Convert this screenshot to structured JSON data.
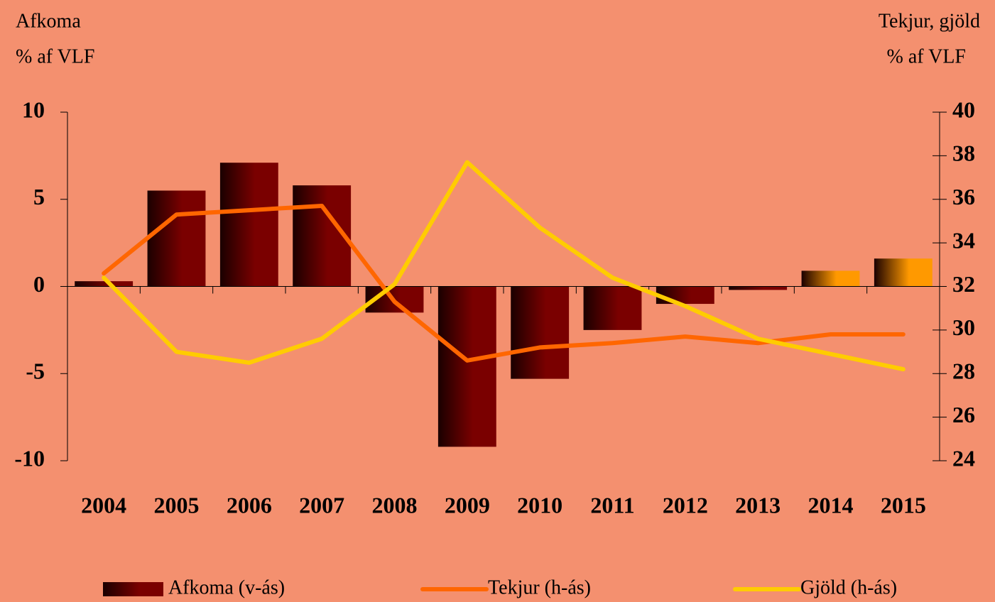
{
  "chart_data": {
    "type": "bar_line",
    "y_label": [
      "Afkoma",
      "% af VLF"
    ],
    "y2_label": [
      "Tekjur, gjöld",
      "% af VLF"
    ],
    "categories": [
      "2004",
      "2005",
      "2006",
      "2007",
      "2008",
      "2009",
      "2010",
      "2011",
      "2012",
      "2013",
      "2014",
      "2015"
    ],
    "series": [
      {
        "name": "Afkoma (v-ás)",
        "type": "bar",
        "color": "#7a0000",
        "colors": [
          "#7a0000",
          "#7a0000",
          "#7a0000",
          "#7a0000",
          "#7a0000",
          "#7a0000",
          "#7a0000",
          "#7a0000",
          "#7a0000",
          "#7a0000",
          "#ff9900",
          "#ff9900"
        ],
        "values": [
          0.3,
          5.5,
          7.1,
          5.8,
          -1.5,
          -9.2,
          -5.3,
          -2.5,
          -1.0,
          -0.2,
          0.9,
          1.6
        ]
      },
      {
        "name": "Tekjur (h-ás)",
        "type": "line",
        "axis": "y2",
        "color": "#ff6600",
        "values": [
          32.6,
          35.3,
          35.5,
          35.7,
          31.3,
          28.6,
          29.2,
          29.4,
          29.7,
          29.4,
          29.8,
          29.8
        ]
      },
      {
        "name": "Gjöld (h-ás)",
        "type": "line",
        "axis": "y2",
        "color": "#ffcc00",
        "values": [
          32.4,
          29.0,
          28.5,
          29.6,
          32.1,
          37.7,
          34.7,
          32.4,
          31.1,
          29.6,
          28.9,
          28.2
        ]
      }
    ],
    "ylim": [
      -10,
      10
    ],
    "yticks": [
      -10,
      -5,
      0,
      5,
      10
    ],
    "y2lim": [
      24,
      40
    ],
    "y2ticks": [
      24,
      26,
      28,
      30,
      32,
      34,
      36,
      38,
      40
    ],
    "grid": false,
    "legend": "bottom"
  }
}
